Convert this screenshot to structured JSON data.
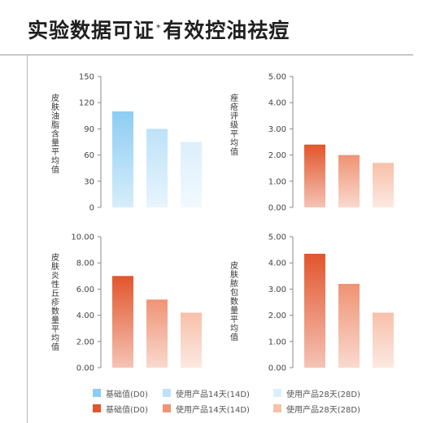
{
  "header": {
    "title_main": "实验数据可证",
    "title_mark": "*",
    "title_sub": "有效控油祛痘"
  },
  "legends": {
    "blue": [
      "基础值(D0)",
      "使用产品14天(14D)",
      "使用产品28天(28D)"
    ],
    "orange": [
      "基础值(D0)",
      "使用产品14天(14D)",
      "使用产品28天(28D)"
    ]
  },
  "chart_data": [
    {
      "type": "bar",
      "ylabel": "皮肤油脂含量平均值",
      "categories": [
        "基础值(D0)",
        "使用产品14天(14D)",
        "使用产品28天(28D)"
      ],
      "values": [
        110,
        90,
        75
      ],
      "ylim": [
        0,
        150
      ],
      "yticks": [
        "0",
        "30",
        "60",
        "90",
        "120",
        "150"
      ],
      "colors": [
        "#8ccdf3",
        "#bde2f8",
        "#dbeffb"
      ]
    },
    {
      "type": "bar",
      "ylabel": "痤疮评级平均值",
      "categories": [
        "基础值(D0)",
        "使用产品14天(14D)",
        "使用产品28天(28D)"
      ],
      "values": [
        2.4,
        2.0,
        1.7
      ],
      "ylim": [
        0,
        5
      ],
      "yticks": [
        "0.00",
        "1.00",
        "2.00",
        "3.00",
        "4.00",
        "5.00"
      ],
      "colors": [
        "#e2552c",
        "#ef9374",
        "#f7c0aa"
      ]
    },
    {
      "type": "bar",
      "ylabel": "皮肤炎性丘疹数量平均值",
      "categories": [
        "基础值(D0)",
        "使用产品14天(14D)",
        "使用产品28天(28D)"
      ],
      "values": [
        7.0,
        5.2,
        4.2
      ],
      "ylim": [
        0,
        10
      ],
      "yticks": [
        "0.00",
        "2.00",
        "4.00",
        "6.00",
        "8.00",
        "10.00"
      ],
      "colors": [
        "#e2552c",
        "#ef9374",
        "#f7c0aa"
      ]
    },
    {
      "type": "bar",
      "ylabel": "皮肤脓包数量平均值",
      "categories": [
        "基础值(D0)",
        "使用产品14天(14D)",
        "使用产品28天(28D)"
      ],
      "values": [
        4.35,
        3.2,
        2.1
      ],
      "ylim": [
        0,
        5
      ],
      "yticks": [
        "0.00",
        "1.00",
        "2.00",
        "3.00",
        "4.00",
        "5.00"
      ],
      "colors": [
        "#e2552c",
        "#ef9374",
        "#f7c0aa"
      ]
    }
  ]
}
